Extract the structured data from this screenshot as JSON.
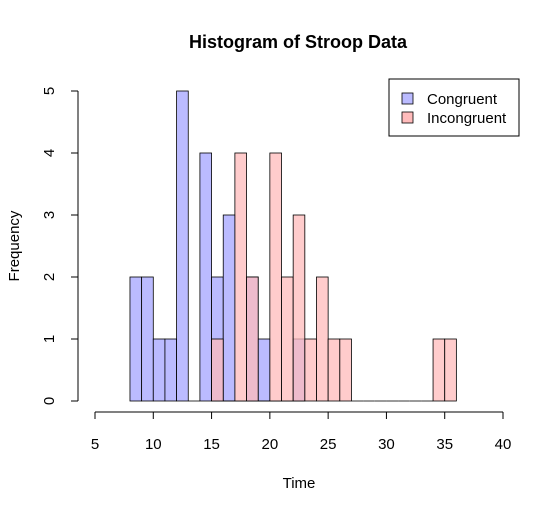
{
  "chart_data": {
    "type": "histogram",
    "title": "Histogram of Stroop Data",
    "xlabel": "Time",
    "ylabel": "Frequency",
    "xlim": [
      5,
      40
    ],
    "ylim": [
      0,
      5
    ],
    "x_ticks": [
      5,
      10,
      15,
      20,
      25,
      30,
      35,
      40
    ],
    "y_ticks": [
      0,
      1,
      2,
      3,
      4,
      5
    ],
    "bin_width": 1,
    "legend": {
      "position": "top-right"
    },
    "series": [
      {
        "name": "Congruent",
        "color": "#bbbbff",
        "bins": [
          {
            "start": 8,
            "end": 9,
            "count": 2
          },
          {
            "start": 9,
            "end": 10,
            "count": 2
          },
          {
            "start": 10,
            "end": 11,
            "count": 1
          },
          {
            "start": 11,
            "end": 12,
            "count": 1
          },
          {
            "start": 12,
            "end": 13,
            "count": 5
          },
          {
            "start": 13,
            "end": 14,
            "count": 0
          },
          {
            "start": 14,
            "end": 15,
            "count": 4
          },
          {
            "start": 15,
            "end": 16,
            "count": 2
          },
          {
            "start": 16,
            "end": 17,
            "count": 3
          },
          {
            "start": 17,
            "end": 18,
            "count": 0
          },
          {
            "start": 18,
            "end": 19,
            "count": 2
          },
          {
            "start": 19,
            "end": 20,
            "count": 1
          },
          {
            "start": 20,
            "end": 21,
            "count": 0
          },
          {
            "start": 21,
            "end": 22,
            "count": 0
          },
          {
            "start": 22,
            "end": 23,
            "count": 1
          }
        ]
      },
      {
        "name": "Incongruent",
        "color": "#ffbbbb",
        "bins": [
          {
            "start": 15,
            "end": 16,
            "count": 1
          },
          {
            "start": 16,
            "end": 17,
            "count": 0
          },
          {
            "start": 17,
            "end": 18,
            "count": 4
          },
          {
            "start": 18,
            "end": 19,
            "count": 2
          },
          {
            "start": 19,
            "end": 20,
            "count": 0
          },
          {
            "start": 20,
            "end": 21,
            "count": 4
          },
          {
            "start": 21,
            "end": 22,
            "count": 2
          },
          {
            "start": 22,
            "end": 23,
            "count": 3
          },
          {
            "start": 23,
            "end": 24,
            "count": 1
          },
          {
            "start": 24,
            "end": 25,
            "count": 2
          },
          {
            "start": 25,
            "end": 26,
            "count": 1
          },
          {
            "start": 26,
            "end": 27,
            "count": 1
          },
          {
            "start": 27,
            "end": 28,
            "count": 0
          },
          {
            "start": 28,
            "end": 29,
            "count": 0
          },
          {
            "start": 29,
            "end": 30,
            "count": 0
          },
          {
            "start": 30,
            "end": 31,
            "count": 0
          },
          {
            "start": 31,
            "end": 32,
            "count": 0
          },
          {
            "start": 32,
            "end": 33,
            "count": 0
          },
          {
            "start": 33,
            "end": 34,
            "count": 0
          },
          {
            "start": 34,
            "end": 35,
            "count": 1
          },
          {
            "start": 35,
            "end": 36,
            "count": 1
          }
        ]
      }
    ]
  }
}
